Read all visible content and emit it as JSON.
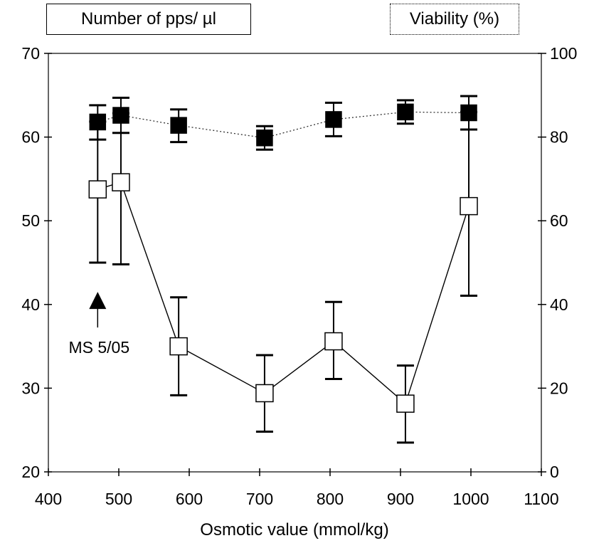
{
  "chart_data": {
    "type": "line",
    "legend": {
      "left": "Number of pps/ µl",
      "right": "Viability (%)"
    },
    "xlabel": "Osmotic value (mmol/kg)",
    "xlim": [
      400,
      1100
    ],
    "x_ticks": [
      "400",
      "500",
      "600",
      "700",
      "800",
      "900",
      "1000",
      "1100"
    ],
    "ylim_left": [
      20,
      70
    ],
    "y_left_ticks": [
      "20",
      "30",
      "40",
      "50",
      "60",
      "70"
    ],
    "ylim_right": [
      0,
      100
    ],
    "y_right_ticks": [
      "0",
      "20",
      "40",
      "60",
      "80",
      "100"
    ],
    "series": [
      {
        "axis": "left",
        "marker": "filled-square",
        "line_style": "dotted",
        "x": [
          470,
          503,
          585,
          707,
          805,
          907,
          997
        ],
        "y": [
          61.8,
          62.6,
          61.4,
          59.9,
          62.1,
          63.0,
          62.9
        ],
        "err_low": [
          59.7,
          60.5,
          59.4,
          58.5,
          60.1,
          61.6,
          60.9
        ],
        "err_high": [
          63.8,
          64.7,
          63.3,
          61.3,
          64.1,
          64.4,
          64.9
        ]
      },
      {
        "axis": "right",
        "marker": "open-square",
        "line_style": "solid",
        "x": [
          470,
          503,
          585,
          707,
          805,
          907,
          997
        ],
        "y": [
          67.5,
          69.2,
          30.0,
          18.8,
          31.2,
          16.3,
          63.5
        ],
        "err_low": [
          50.0,
          49.6,
          18.3,
          9.6,
          22.2,
          7.0,
          42.1
        ],
        "err_high": [
          83.7,
          85.7,
          41.7,
          27.9,
          40.6,
          25.4,
          86.0
        ]
      }
    ],
    "annotation": {
      "text": "MS 5/05",
      "x": 470,
      "y": 41.5,
      "axis": "left"
    }
  }
}
